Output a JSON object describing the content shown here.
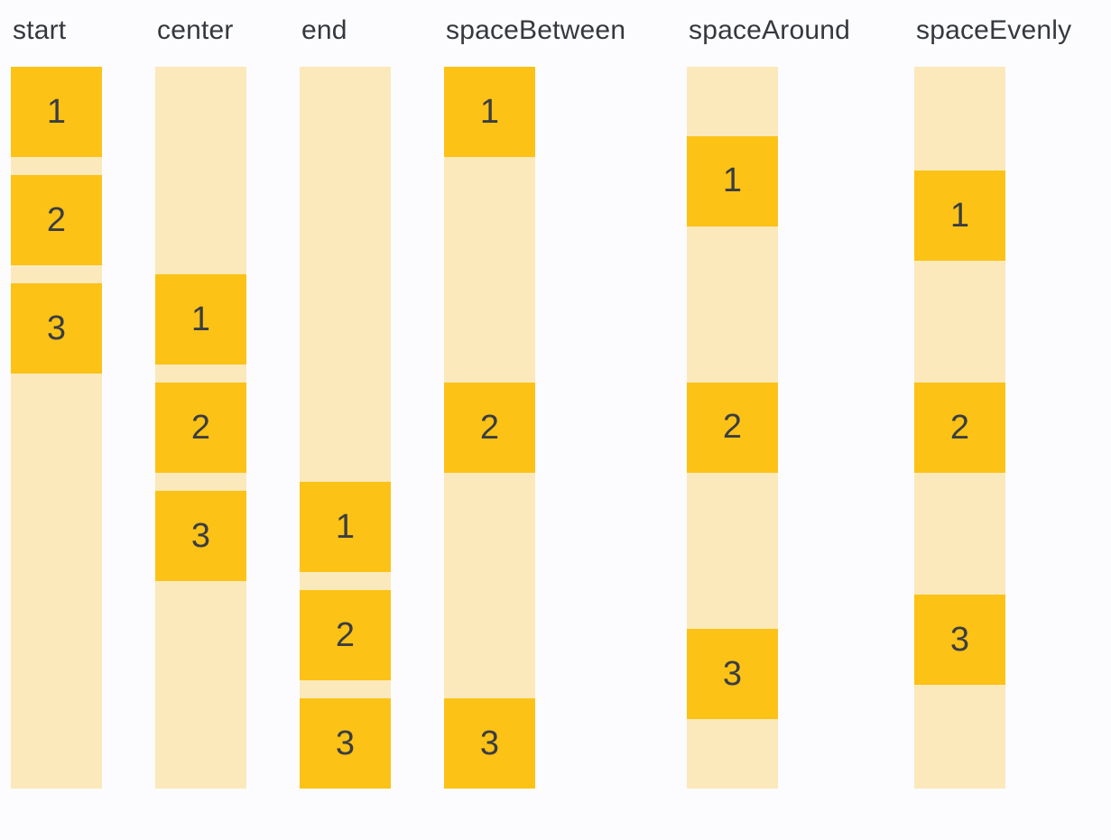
{
  "colors": {
    "background": "#FCFCFE",
    "track": "#FCE9BB",
    "box": "#FCC216",
    "header_text": "#35383D",
    "box_text": "#3A3D42"
  },
  "columns": [
    {
      "label": "start",
      "boxes": [
        "1",
        "2",
        "3"
      ]
    },
    {
      "label": "center",
      "boxes": [
        "1",
        "2",
        "3"
      ]
    },
    {
      "label": "end",
      "boxes": [
        "1",
        "2",
        "3"
      ]
    },
    {
      "label": "spaceBetween",
      "boxes": [
        "1",
        "2",
        "3"
      ]
    },
    {
      "label": "spaceAround",
      "boxes": [
        "1",
        "2",
        "3"
      ]
    },
    {
      "label": "spaceEvenly",
      "boxes": [
        "1",
        "2",
        "3"
      ]
    }
  ]
}
